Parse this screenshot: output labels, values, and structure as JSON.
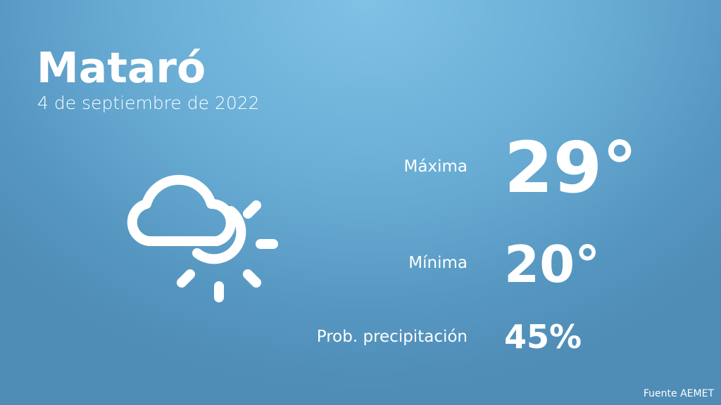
{
  "location": {
    "city": "Mataró",
    "date": "4 de septiembre de 2022"
  },
  "forecast": {
    "max_label": "Máxima",
    "max_value": "29°",
    "min_label": "Mínima",
    "min_value": "20°",
    "precip_label": "Prob. precipitación",
    "precip_value": "45%",
    "icon": "cloud-sun-icon"
  },
  "source": "Fuente AEMET",
  "colors": {
    "background_top": "#80c2e6",
    "background_bottom": "#4f8cb6",
    "text": "#ffffff"
  }
}
